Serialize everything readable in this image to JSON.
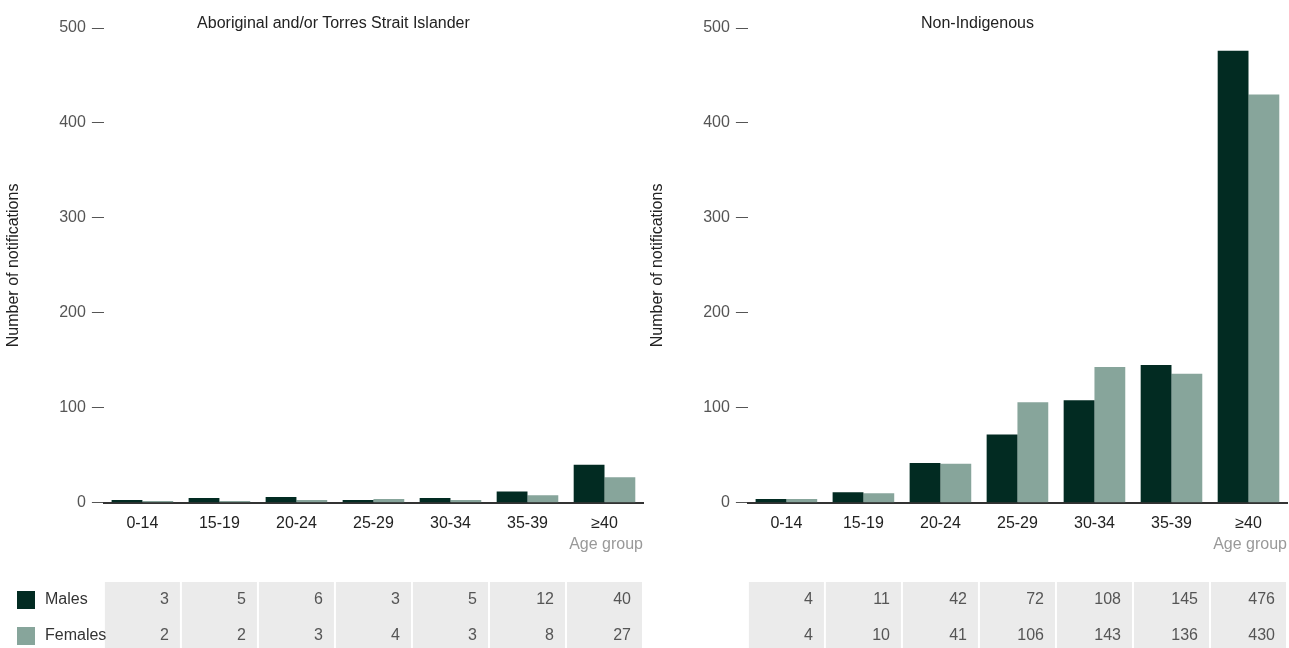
{
  "chart_data": [
    {
      "type": "bar",
      "title": "Aboriginal and/or Torres Strait Islander",
      "ylabel": "Number of notifications",
      "xlabel": "Age group",
      "categories": [
        "0-14",
        "15-19",
        "20-24",
        "25-29",
        "30-34",
        "35-39",
        "≥40"
      ],
      "series": [
        {
          "name": "Males",
          "color": "#022b22",
          "values": [
            3,
            5,
            6,
            3,
            5,
            12,
            40
          ]
        },
        {
          "name": "Females",
          "color": "#87a59b",
          "values": [
            2,
            2,
            3,
            4,
            3,
            8,
            27
          ]
        }
      ],
      "ylim": [
        0,
        500
      ],
      "yticks": [
        0,
        100,
        200,
        300,
        400,
        500
      ],
      "grid": false,
      "legend": "bottom left",
      "data_labels": true
    },
    {
      "type": "bar",
      "title": "Non-Indigenous",
      "ylabel": "Number of notifications",
      "xlabel": "Age group",
      "categories": [
        "0-14",
        "15-19",
        "20-24",
        "25-29",
        "30-34",
        "35-39",
        "≥40"
      ],
      "series": [
        {
          "color": "#022b22",
          "values": [
            4,
            11,
            42,
            72,
            108,
            145,
            476
          ]
        },
        {
          "color": "#87a59b",
          "values": [
            4,
            10,
            41,
            106,
            143,
            136,
            430
          ]
        }
      ],
      "ylim": [
        0,
        500
      ],
      "yticks": [
        0,
        100,
        200,
        300,
        400,
        500
      ],
      "grid": false,
      "legend": false,
      "data_labels": true
    }
  ]
}
